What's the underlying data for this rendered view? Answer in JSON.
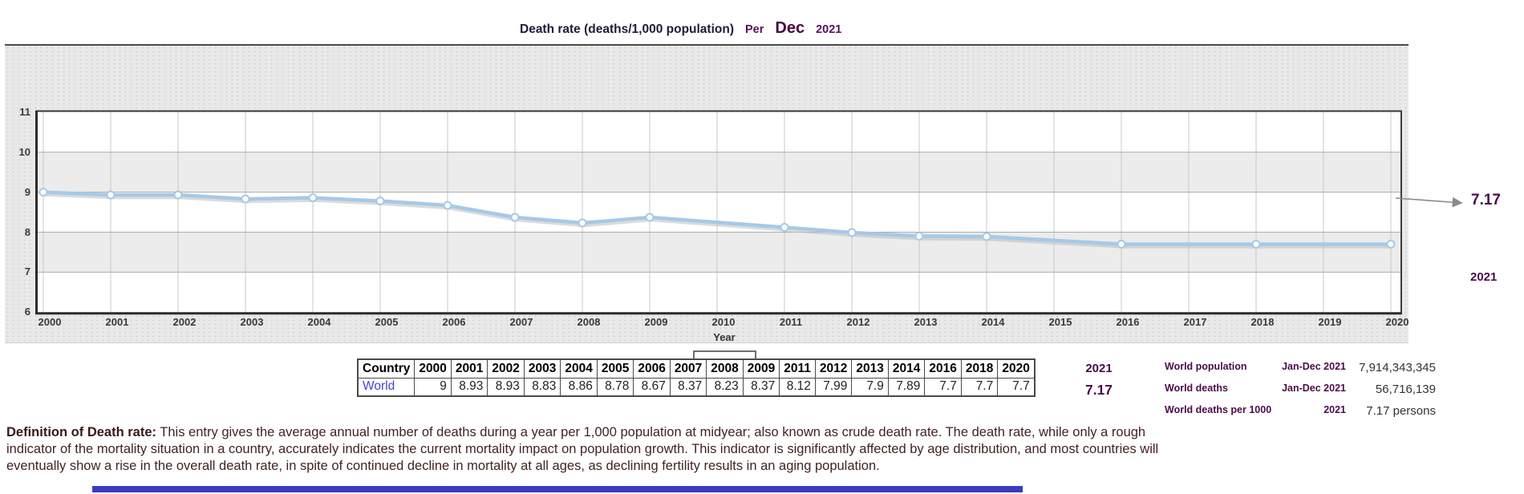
{
  "title": {
    "main": "Death rate (deaths/1,000 population)",
    "per_label": "Per",
    "month": "Dec",
    "year": "2021"
  },
  "chart_data": {
    "type": "line",
    "title": "Death rate (deaths/1,000 population) Per Dec 2021",
    "xlabel": "Year",
    "ylabel": "",
    "ylim": [
      6,
      11
    ],
    "y_ticks": [
      6,
      7,
      8,
      9,
      10,
      11
    ],
    "x_ticks": [
      2000,
      2001,
      2002,
      2003,
      2004,
      2005,
      2006,
      2007,
      2008,
      2009,
      2010,
      2011,
      2012,
      2013,
      2014,
      2015,
      2016,
      2017,
      2018,
      2019,
      2020
    ],
    "grid": "on",
    "legend_position": "bottom-center",
    "series": [
      {
        "name": "World",
        "x": [
          2000,
          2001,
          2002,
          2003,
          2004,
          2005,
          2006,
          2007,
          2008,
          2009,
          2011,
          2012,
          2013,
          2014,
          2016,
          2018,
          2020
        ],
        "values": [
          9,
          8.93,
          8.93,
          8.83,
          8.86,
          8.78,
          8.67,
          8.37,
          8.23,
          8.37,
          8.12,
          7.99,
          7.9,
          7.89,
          7.7,
          7.7,
          7.7
        ]
      }
    ],
    "annotation": {
      "value": "7.17",
      "year": "2021"
    },
    "line_color": "#a5c9e9",
    "marker": "circle-outline"
  },
  "legend": {
    "items": [
      "World"
    ]
  },
  "table": {
    "country_header": "Country",
    "country": "World",
    "years": [
      "2000",
      "2001",
      "2002",
      "2003",
      "2004",
      "2005",
      "2006",
      "2007",
      "2008",
      "2009",
      "2011",
      "2012",
      "2013",
      "2014",
      "2016",
      "2018",
      "2020"
    ],
    "values": [
      "9",
      "8.93",
      "8.93",
      "8.83",
      "8.86",
      "8.78",
      "8.67",
      "8.37",
      "8.23",
      "8.37",
      "8.12",
      "7.99",
      "7.9",
      "7.89",
      "7.7",
      "7.7",
      "7.7"
    ],
    "extra_year": "2021",
    "extra_value": "7.17"
  },
  "stats": {
    "rows": [
      {
        "label": "World population",
        "period": "Jan-Dec 2021",
        "value": "7,914,343,345"
      },
      {
        "label": "World deaths",
        "period": "Jan-Dec 2021",
        "value": "56,716,139"
      },
      {
        "label": "World deaths per 1000",
        "period": "2021",
        "value": "7.17 persons"
      }
    ]
  },
  "definition": {
    "lead": "Definition of Death rate:",
    "text": " This entry gives the average annual number of deaths during a year per 1,000 population at midyear; also known as crude death rate. The death rate, while only a rough indicator of the mortality situation in a country, accurately indicates the current mortality impact on population growth. This indicator is significantly affected by age distribution, and most countries will eventually show a rise in the overall death rate, in spite of continued decline in mortality at all ages, as declining fertility results in an aging population."
  },
  "colors": {
    "accent_purple": "#4b0b4b",
    "line_blue": "#a5c9e9",
    "chart_bg": "#e9e9e9",
    "band_gray": "#ececec",
    "link_blue": "#4343cf",
    "bottom_bar_blue": "#3a3ac4"
  }
}
